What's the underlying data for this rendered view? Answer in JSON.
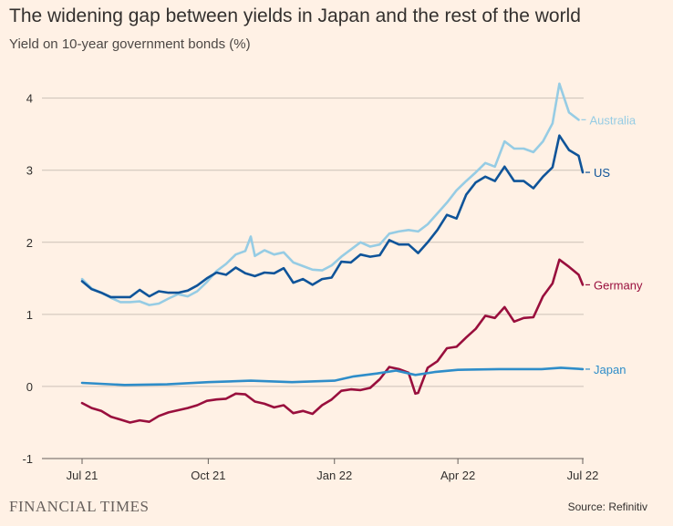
{
  "header": {
    "title": "The widening gap between yields in Japan and the rest of the world",
    "subtitle": "Yield on 10-year government bonds (%)"
  },
  "footer": {
    "brand": "FINANCIAL TIMES",
    "source": "Source: Refinitiv"
  },
  "chart_data": {
    "type": "line",
    "title": "The widening gap between yields in Japan and the rest of the world",
    "subtitle": "Yield on 10-year government bonds (%)",
    "xlabel": "",
    "ylabel": "",
    "xlim": [
      "2021-07-01",
      "2022-07-01"
    ],
    "ylim": [
      -1,
      4.4
    ],
    "y_ticks": [
      -1,
      0,
      1,
      2,
      3,
      4
    ],
    "y_tick_labels": [
      "-1",
      "0",
      "1",
      "2",
      "3",
      "4"
    ],
    "x_ticks": [
      "2021-07-01",
      "2021-10-01",
      "2022-01-01",
      "2022-04-01",
      "2022-07-01"
    ],
    "x_tick_labels": [
      "Jul 21",
      "Oct 21",
      "Jan 22",
      "Apr 22",
      "Jul 22"
    ],
    "grid": true,
    "legend": "direct labels at right end of lines",
    "series": [
      {
        "name": "Australia",
        "color": "#96cce4",
        "points": [
          [
            "2021-07-01",
            1.49
          ],
          [
            "2021-07-08",
            1.36
          ],
          [
            "2021-07-15",
            1.3
          ],
          [
            "2021-07-22",
            1.23
          ],
          [
            "2021-07-29",
            1.17
          ],
          [
            "2021-08-05",
            1.17
          ],
          [
            "2021-08-12",
            1.18
          ],
          [
            "2021-08-19",
            1.13
          ],
          [
            "2021-08-26",
            1.15
          ],
          [
            "2021-09-02",
            1.22
          ],
          [
            "2021-09-09",
            1.28
          ],
          [
            "2021-09-16",
            1.25
          ],
          [
            "2021-09-23",
            1.32
          ],
          [
            "2021-09-30",
            1.45
          ],
          [
            "2021-10-07",
            1.6
          ],
          [
            "2021-10-14",
            1.7
          ],
          [
            "2021-10-21",
            1.83
          ],
          [
            "2021-10-28",
            1.88
          ],
          [
            "2021-11-01",
            2.08
          ],
          [
            "2021-11-04",
            1.81
          ],
          [
            "2021-11-11",
            1.89
          ],
          [
            "2021-11-18",
            1.83
          ],
          [
            "2021-11-25",
            1.86
          ],
          [
            "2021-12-02",
            1.72
          ],
          [
            "2021-12-09",
            1.67
          ],
          [
            "2021-12-16",
            1.62
          ],
          [
            "2021-12-23",
            1.61
          ],
          [
            "2021-12-30",
            1.68
          ],
          [
            "2022-01-06",
            1.8
          ],
          [
            "2022-01-13",
            1.9
          ],
          [
            "2022-01-20",
            2.0
          ],
          [
            "2022-01-27",
            1.94
          ],
          [
            "2022-02-03",
            1.97
          ],
          [
            "2022-02-10",
            2.12
          ],
          [
            "2022-02-17",
            2.15
          ],
          [
            "2022-02-24",
            2.17
          ],
          [
            "2022-03-03",
            2.15
          ],
          [
            "2022-03-10",
            2.25
          ],
          [
            "2022-03-17",
            2.4
          ],
          [
            "2022-03-24",
            2.55
          ],
          [
            "2022-03-31",
            2.72
          ],
          [
            "2022-04-07",
            2.85
          ],
          [
            "2022-04-14",
            2.97
          ],
          [
            "2022-04-21",
            3.1
          ],
          [
            "2022-04-28",
            3.05
          ],
          [
            "2022-05-05",
            3.4
          ],
          [
            "2022-05-12",
            3.3
          ],
          [
            "2022-05-19",
            3.3
          ],
          [
            "2022-05-26",
            3.25
          ],
          [
            "2022-06-02",
            3.4
          ],
          [
            "2022-06-09",
            3.65
          ],
          [
            "2022-06-14",
            4.2
          ],
          [
            "2022-06-21",
            3.8
          ],
          [
            "2022-06-28",
            3.7
          ]
        ]
      },
      {
        "name": "US",
        "color": "#0f5499",
        "points": [
          [
            "2021-07-01",
            1.46
          ],
          [
            "2021-07-08",
            1.35
          ],
          [
            "2021-07-15",
            1.3
          ],
          [
            "2021-07-22",
            1.24
          ],
          [
            "2021-07-29",
            1.24
          ],
          [
            "2021-08-05",
            1.24
          ],
          [
            "2021-08-12",
            1.34
          ],
          [
            "2021-08-19",
            1.25
          ],
          [
            "2021-08-26",
            1.32
          ],
          [
            "2021-09-02",
            1.3
          ],
          [
            "2021-09-09",
            1.3
          ],
          [
            "2021-09-16",
            1.33
          ],
          [
            "2021-09-23",
            1.4
          ],
          [
            "2021-09-30",
            1.5
          ],
          [
            "2021-10-07",
            1.58
          ],
          [
            "2021-10-14",
            1.55
          ],
          [
            "2021-10-21",
            1.65
          ],
          [
            "2021-10-28",
            1.57
          ],
          [
            "2021-11-04",
            1.53
          ],
          [
            "2021-11-11",
            1.58
          ],
          [
            "2021-11-18",
            1.57
          ],
          [
            "2021-11-25",
            1.64
          ],
          [
            "2021-12-02",
            1.44
          ],
          [
            "2021-12-09",
            1.49
          ],
          [
            "2021-12-16",
            1.41
          ],
          [
            "2021-12-23",
            1.49
          ],
          [
            "2021-12-30",
            1.51
          ],
          [
            "2022-01-06",
            1.73
          ],
          [
            "2022-01-13",
            1.72
          ],
          [
            "2022-01-20",
            1.83
          ],
          [
            "2022-01-27",
            1.8
          ],
          [
            "2022-02-03",
            1.82
          ],
          [
            "2022-02-10",
            2.03
          ],
          [
            "2022-02-17",
            1.97
          ],
          [
            "2022-02-24",
            1.97
          ],
          [
            "2022-03-03",
            1.85
          ],
          [
            "2022-03-10",
            2.0
          ],
          [
            "2022-03-17",
            2.17
          ],
          [
            "2022-03-24",
            2.38
          ],
          [
            "2022-03-31",
            2.33
          ],
          [
            "2022-04-07",
            2.66
          ],
          [
            "2022-04-14",
            2.83
          ],
          [
            "2022-04-21",
            2.91
          ],
          [
            "2022-04-28",
            2.85
          ],
          [
            "2022-05-05",
            3.05
          ],
          [
            "2022-05-12",
            2.85
          ],
          [
            "2022-05-19",
            2.85
          ],
          [
            "2022-05-26",
            2.75
          ],
          [
            "2022-06-02",
            2.91
          ],
          [
            "2022-06-09",
            3.04
          ],
          [
            "2022-06-14",
            3.48
          ],
          [
            "2022-06-21",
            3.28
          ],
          [
            "2022-06-28",
            3.2
          ],
          [
            "2022-07-01",
            2.97
          ]
        ]
      },
      {
        "name": "Germany",
        "color": "#990f3d",
        "points": [
          [
            "2021-07-01",
            -0.23
          ],
          [
            "2021-07-08",
            -0.3
          ],
          [
            "2021-07-15",
            -0.34
          ],
          [
            "2021-07-22",
            -0.42
          ],
          [
            "2021-07-29",
            -0.46
          ],
          [
            "2021-08-05",
            -0.5
          ],
          [
            "2021-08-12",
            -0.47
          ],
          [
            "2021-08-19",
            -0.49
          ],
          [
            "2021-08-26",
            -0.41
          ],
          [
            "2021-09-02",
            -0.36
          ],
          [
            "2021-09-09",
            -0.33
          ],
          [
            "2021-09-16",
            -0.3
          ],
          [
            "2021-09-23",
            -0.26
          ],
          [
            "2021-09-30",
            -0.2
          ],
          [
            "2021-10-07",
            -0.18
          ],
          [
            "2021-10-14",
            -0.17
          ],
          [
            "2021-10-21",
            -0.1
          ],
          [
            "2021-10-28",
            -0.11
          ],
          [
            "2021-11-04",
            -0.21
          ],
          [
            "2021-11-11",
            -0.24
          ],
          [
            "2021-11-18",
            -0.29
          ],
          [
            "2021-11-25",
            -0.26
          ],
          [
            "2021-12-02",
            -0.37
          ],
          [
            "2021-12-09",
            -0.34
          ],
          [
            "2021-12-16",
            -0.38
          ],
          [
            "2021-12-23",
            -0.26
          ],
          [
            "2021-12-30",
            -0.18
          ],
          [
            "2022-01-06",
            -0.06
          ],
          [
            "2022-01-13",
            -0.04
          ],
          [
            "2022-01-20",
            -0.05
          ],
          [
            "2022-01-27",
            -0.02
          ],
          [
            "2022-02-03",
            0.1
          ],
          [
            "2022-02-10",
            0.27
          ],
          [
            "2022-02-17",
            0.24
          ],
          [
            "2022-02-24",
            0.19
          ],
          [
            "2022-03-01",
            -0.1
          ],
          [
            "2022-03-03",
            -0.09
          ],
          [
            "2022-03-10",
            0.26
          ],
          [
            "2022-03-17",
            0.35
          ],
          [
            "2022-03-24",
            0.53
          ],
          [
            "2022-03-31",
            0.55
          ],
          [
            "2022-04-07",
            0.68
          ],
          [
            "2022-04-14",
            0.8
          ],
          [
            "2022-04-21",
            0.98
          ],
          [
            "2022-04-28",
            0.95
          ],
          [
            "2022-05-05",
            1.1
          ],
          [
            "2022-05-12",
            0.9
          ],
          [
            "2022-05-19",
            0.95
          ],
          [
            "2022-05-26",
            0.96
          ],
          [
            "2022-06-02",
            1.25
          ],
          [
            "2022-06-09",
            1.43
          ],
          [
            "2022-06-14",
            1.76
          ],
          [
            "2022-06-21",
            1.66
          ],
          [
            "2022-06-28",
            1.55
          ],
          [
            "2022-07-01",
            1.41
          ]
        ]
      },
      {
        "name": "Japan",
        "color": "#2e8dc9",
        "points": [
          [
            "2021-07-01",
            0.05
          ],
          [
            "2021-08-01",
            0.02
          ],
          [
            "2021-09-01",
            0.03
          ],
          [
            "2021-10-01",
            0.06
          ],
          [
            "2021-11-01",
            0.08
          ],
          [
            "2021-12-01",
            0.06
          ],
          [
            "2022-01-01",
            0.08
          ],
          [
            "2022-01-15",
            0.14
          ],
          [
            "2022-02-01",
            0.18
          ],
          [
            "2022-02-15",
            0.22
          ],
          [
            "2022-03-01",
            0.16
          ],
          [
            "2022-03-15",
            0.2
          ],
          [
            "2022-04-01",
            0.23
          ],
          [
            "2022-05-01",
            0.24
          ],
          [
            "2022-06-01",
            0.24
          ],
          [
            "2022-06-15",
            0.26
          ],
          [
            "2022-07-01",
            0.24
          ]
        ]
      }
    ]
  }
}
